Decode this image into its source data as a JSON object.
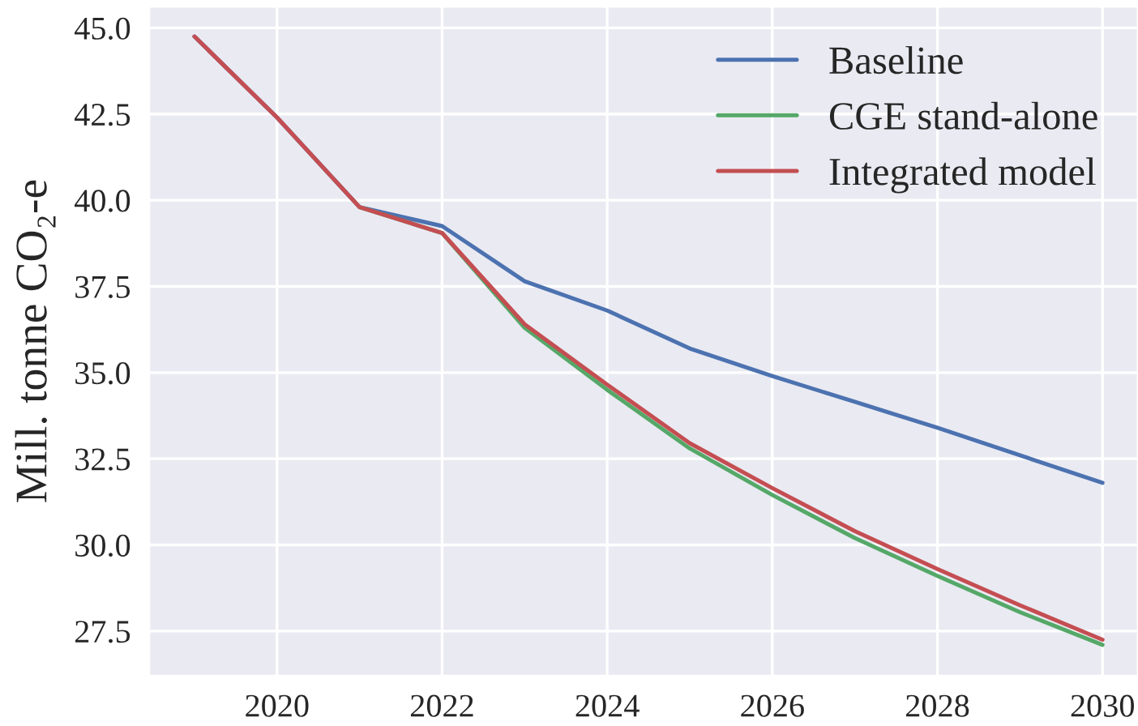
{
  "chart_data": {
    "type": "line",
    "ylabel": "Mill. tonne CO₂-e",
    "x": [
      2019,
      2020,
      2021,
      2022,
      2023,
      2024,
      2025,
      2026,
      2027,
      2028,
      2029,
      2030
    ],
    "series": [
      {
        "name": "Baseline",
        "color": "#4c72b0",
        "values": [
          44.75,
          42.4,
          39.8,
          39.25,
          37.65,
          36.8,
          35.7,
          34.9,
          34.15,
          33.4,
          32.6,
          31.8
        ]
      },
      {
        "name": "CGE stand-alone",
        "color": "#55a868",
        "values": [
          null,
          null,
          39.8,
          39.05,
          36.3,
          34.5,
          32.8,
          31.45,
          30.2,
          29.1,
          28.05,
          27.1
        ]
      },
      {
        "name": "Integrated model",
        "color": "#c44e52",
        "values": [
          44.75,
          42.4,
          39.8,
          39.05,
          36.4,
          34.65,
          32.95,
          31.65,
          30.4,
          29.3,
          28.25,
          27.25
        ]
      }
    ],
    "xlim": [
      2018.45,
      2030.43
    ],
    "xticks": [
      2020,
      2022,
      2024,
      2026,
      2028,
      2030
    ],
    "ylim": [
      26.2,
      45.62
    ],
    "yticks": [
      {
        "value": 27.5,
        "label": "27.5"
      },
      {
        "value": 30,
        "label": "30.0"
      },
      {
        "value": 32.5,
        "label": "32.5"
      },
      {
        "value": 35,
        "label": "35.0"
      },
      {
        "value": 37.5,
        "label": "37.5"
      },
      {
        "value": 40,
        "label": "40.0"
      },
      {
        "value": 42.5,
        "label": "42.5"
      },
      {
        "value": 45,
        "label": "45.0"
      }
    ],
    "grid": true,
    "legend": "top right",
    "line_style": "solid"
  }
}
